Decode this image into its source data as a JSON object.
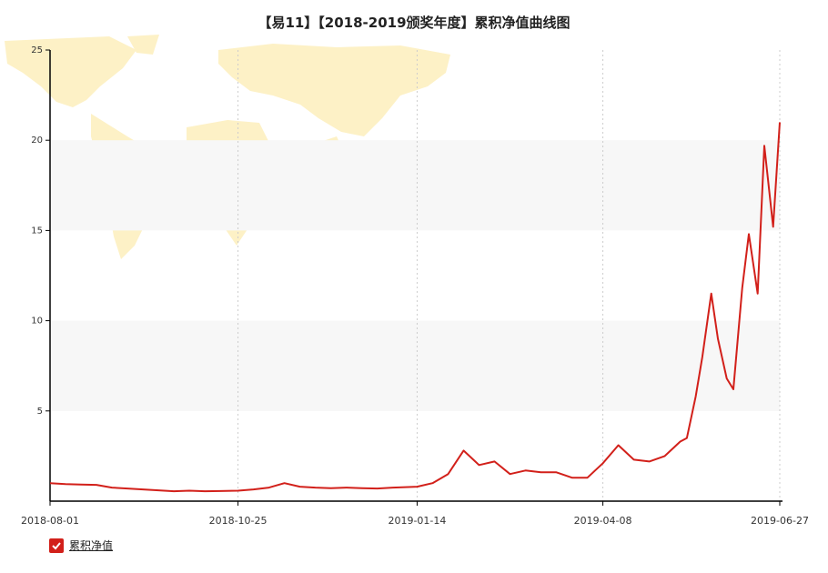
{
  "chart_data": {
    "type": "line",
    "title": "【易11】【2018-2019颁奖年度】累积净值曲线图",
    "xlabel": "",
    "ylabel": "",
    "ylim": [
      0,
      25
    ],
    "yticks": [
      5,
      10,
      15,
      20,
      25
    ],
    "xticks": [
      "2018-08-01",
      "2018-10-25",
      "2019-01-14",
      "2019-04-08",
      "2019-06-27"
    ],
    "grid": "alternating horizontal bands, dotted vertical lines",
    "legend": "bottom-left",
    "colors": {
      "line": "#d2201a",
      "band": "#f7f7f7",
      "map": "#fdf1c6"
    },
    "series": [
      {
        "name": "累积净值",
        "x": [
          "2018-08-01",
          "2018-08-08",
          "2018-08-15",
          "2018-08-22",
          "2018-08-29",
          "2018-09-05",
          "2018-09-12",
          "2018-09-19",
          "2018-09-26",
          "2018-10-03",
          "2018-10-10",
          "2018-10-17",
          "2018-10-25",
          "2018-11-01",
          "2018-11-08",
          "2018-11-15",
          "2018-11-22",
          "2018-11-29",
          "2018-12-06",
          "2018-12-13",
          "2018-12-20",
          "2018-12-27",
          "2019-01-03",
          "2019-01-10",
          "2019-01-14",
          "2019-01-21",
          "2019-01-28",
          "2019-02-04",
          "2019-02-11",
          "2019-02-18",
          "2019-02-25",
          "2019-03-04",
          "2019-03-11",
          "2019-03-18",
          "2019-03-25",
          "2019-04-01",
          "2019-04-08",
          "2019-04-15",
          "2019-04-22",
          "2019-04-29",
          "2019-05-06",
          "2019-05-13",
          "2019-05-16",
          "2019-05-20",
          "2019-05-23",
          "2019-05-27",
          "2019-05-30",
          "2019-06-03",
          "2019-06-06",
          "2019-06-10",
          "2019-06-13",
          "2019-06-17",
          "2019-06-20",
          "2019-06-24",
          "2019-06-27"
        ],
        "values": [
          1.0,
          0.95,
          0.92,
          0.9,
          0.75,
          0.7,
          0.65,
          0.6,
          0.55,
          0.58,
          0.55,
          0.56,
          0.58,
          0.65,
          0.75,
          1.0,
          0.8,
          0.75,
          0.72,
          0.75,
          0.72,
          0.7,
          0.75,
          0.78,
          0.8,
          1.0,
          1.5,
          2.8,
          2.0,
          2.2,
          1.5,
          1.7,
          1.6,
          1.6,
          1.3,
          1.3,
          2.1,
          3.1,
          2.3,
          2.2,
          2.5,
          3.3,
          3.5,
          5.8,
          8.0,
          11.5,
          9.0,
          6.8,
          6.2,
          11.8,
          14.8,
          11.5,
          19.7,
          15.2,
          21.0
        ]
      }
    ]
  },
  "legend_items": [
    {
      "label": "累积净值",
      "checked": true
    }
  ]
}
